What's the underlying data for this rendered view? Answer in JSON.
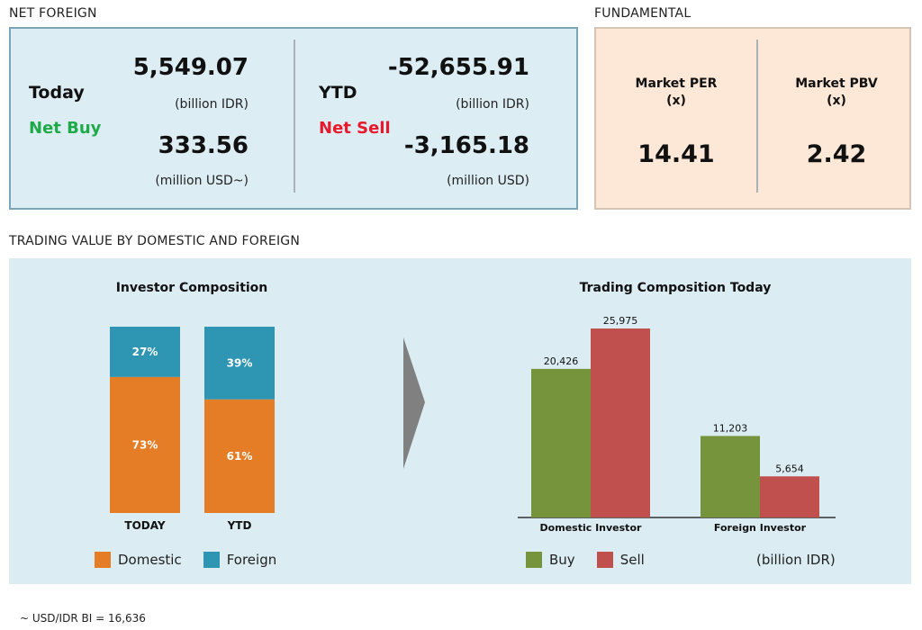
{
  "net_foreign": {
    "section_title": "NET FOREIGN",
    "today": {
      "label": "Today",
      "status": "Net Buy",
      "idr_value": "5,549.07",
      "idr_unit": "(billion IDR)",
      "usd_value": "333.56",
      "usd_unit": "(million USD~)"
    },
    "ytd": {
      "label": "YTD",
      "status": "Net Sell",
      "idr_value": "-52,655.91",
      "idr_unit": "(billion IDR)",
      "usd_value": "-3,165.18",
      "usd_unit": "(million USD)"
    },
    "colors": {
      "net_buy": "#1faa4a",
      "net_sell": "#e8192c"
    }
  },
  "fundamental": {
    "section_title": "FUNDAMENTAL",
    "per": {
      "label": "Market PER",
      "unit": "(x)",
      "value": "14.41"
    },
    "pbv": {
      "label": "Market PBV",
      "unit": "(x)",
      "value": "2.42"
    }
  },
  "trading_value": {
    "section_title": "TRADING VALUE BY DOMESTIC AND FOREIGN",
    "unit_note": "(billion IDR)"
  },
  "footnote": "~ USD/IDR BI = 16,636",
  "chart_data": [
    {
      "type": "bar",
      "stacked": true,
      "title": "Investor Composition",
      "categories": [
        "TODAY",
        "YTD"
      ],
      "series": [
        {
          "name": "Domestic",
          "values": [
            73,
            61
          ],
          "labels": [
            "73%",
            "61%"
          ],
          "color": "#e47d25"
        },
        {
          "name": "Foreign",
          "values": [
            27,
            39
          ],
          "labels": [
            "27%",
            "39%"
          ],
          "color": "#2e95b3"
        }
      ],
      "ylim": [
        0,
        100
      ],
      "legend": "bottom"
    },
    {
      "type": "bar",
      "title": "Trading Composition Today",
      "categories": [
        "Domestic Investor",
        "Foreign Investor"
      ],
      "series": [
        {
          "name": "Buy",
          "values": [
            20426,
            11203
          ],
          "labels": [
            "20,426",
            "11,203"
          ],
          "color": "#76943c"
        },
        {
          "name": "Sell",
          "values": [
            25975,
            5654
          ],
          "labels": [
            "25,975",
            "5,654"
          ],
          "color": "#c0504d"
        }
      ],
      "ylim": [
        0,
        25975
      ],
      "legend": "bottom"
    }
  ]
}
